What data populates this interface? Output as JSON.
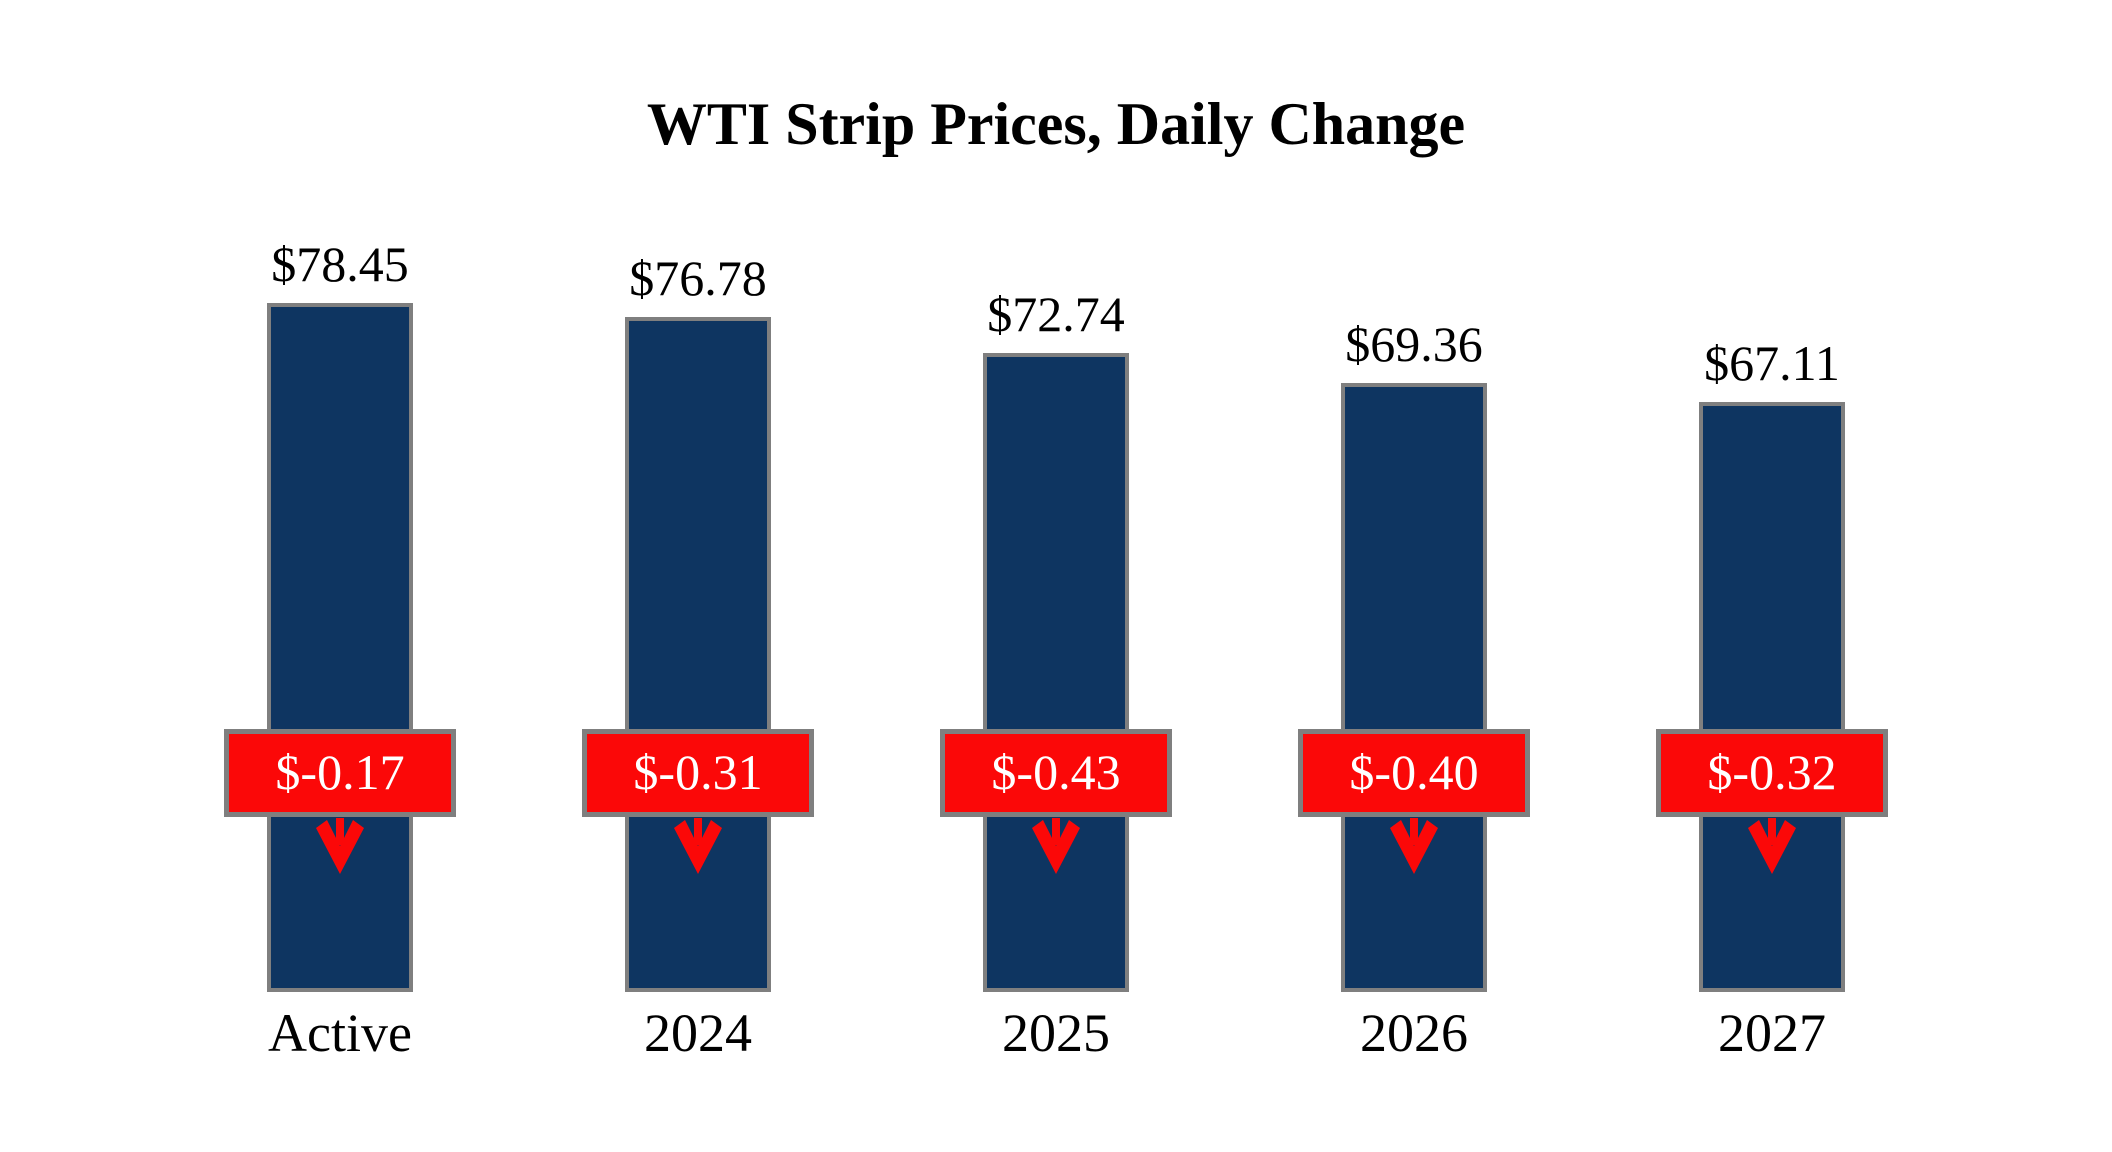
{
  "title": "WTI Strip Prices, Daily Change",
  "chart_data": {
    "type": "bar",
    "title": "WTI Strip Prices, Daily Change",
    "categories": [
      "Active",
      "2024",
      "2025",
      "2026",
      "2027"
    ],
    "series": [
      {
        "name": "strip_price",
        "values": [
          78.45,
          76.78,
          72.74,
          69.36,
          67.11
        ],
        "labels": [
          "$78.45",
          "$76.78",
          "$72.74",
          "$69.36",
          "$67.11"
        ]
      },
      {
        "name": "daily_change",
        "values": [
          -0.17,
          -0.31,
          -0.43,
          -0.4,
          -0.32
        ],
        "labels": [
          "$-0.17",
          "$-0.31",
          "$-0.43",
          "$-0.40",
          "$-0.32"
        ]
      }
    ],
    "ylim": [
      0,
      78.45
    ],
    "grid": false,
    "legend": false,
    "annotation_style": "price label above each bar; red badge with white daily-change value and red down arrow overlaid on each bar"
  },
  "colors": {
    "background": "#ffffff",
    "text": "#000000",
    "bar_fill": "#0e3561",
    "bar_border": "#7f7f7f",
    "badge_fill": "#fb0808",
    "badge_border": "#7f7f7f",
    "badge_text": "#ffffff",
    "arrow": "#fb0808"
  }
}
